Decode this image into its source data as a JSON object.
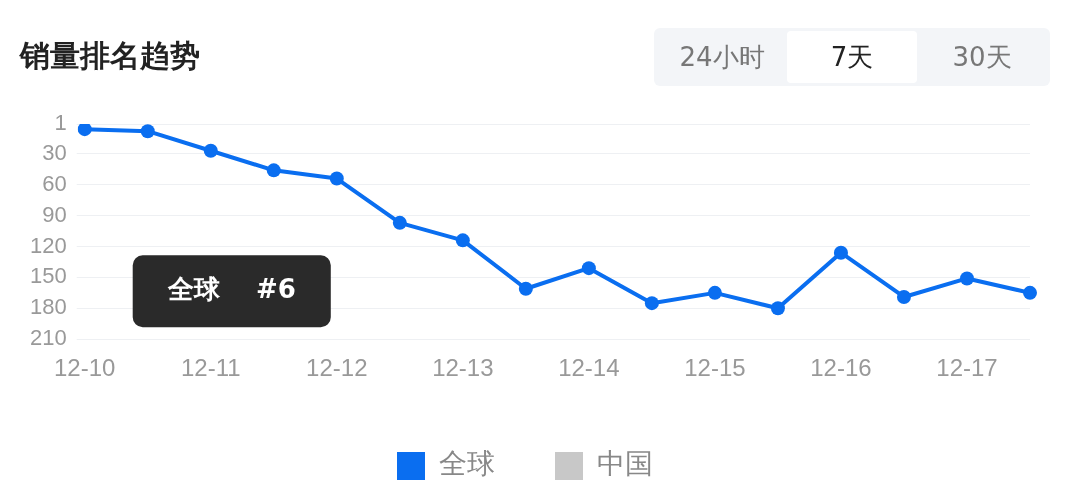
{
  "chart_data": {
    "type": "line",
    "title": "销量排名趋势",
    "categories": [
      "12-10",
      null,
      "12-11",
      null,
      "12-12",
      null,
      "12-13",
      null,
      "12-14",
      null,
      "12-15",
      null,
      "12-16",
      null,
      "12-17",
      null
    ],
    "series": [
      {
        "name": "全球",
        "color": "#0a6ef0",
        "values": [
          6,
          8,
          27,
          46,
          54,
          97,
          114,
          161,
          141,
          175,
          165,
          180,
          126,
          169,
          151,
          165
        ]
      },
      {
        "name": "中国",
        "color": "#c8c8c8",
        "values": [
          null,
          null,
          null,
          null,
          null,
          null,
          null,
          null,
          null,
          null,
          null,
          null,
          null,
          null,
          null,
          null
        ]
      }
    ],
    "ylim": [
      210,
      1
    ],
    "yticks": [
      1,
      30,
      60,
      90,
      120,
      150,
      180,
      210
    ],
    "grid": "y",
    "legend": "bottom",
    "marker": "circle",
    "line_style": "solid",
    "annotations": [
      "24小时",
      "7天",
      "30天",
      "全球    #6"
    ]
  }
}
